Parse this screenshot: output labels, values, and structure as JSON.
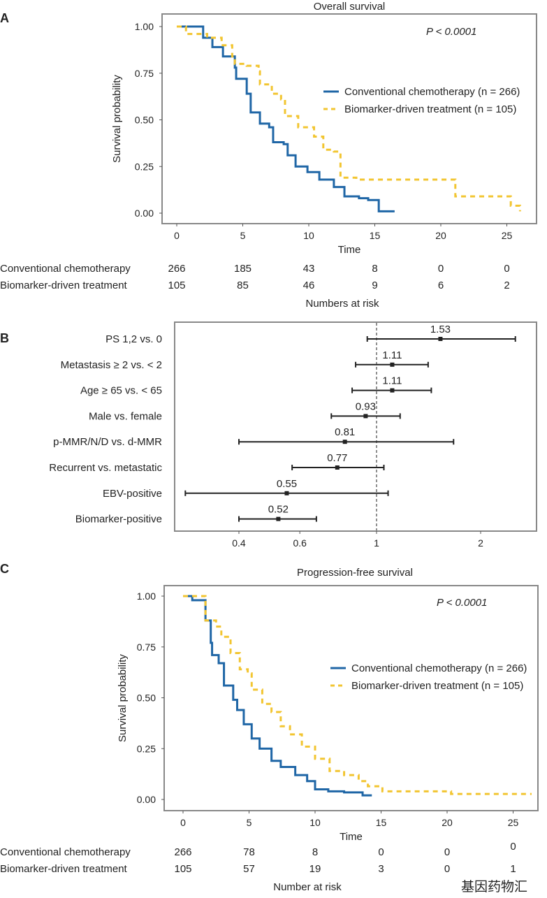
{
  "colors": {
    "conventional": "#1f66a6",
    "biomarker": "#f2c531",
    "frame": "#888888"
  },
  "chart_data": [
    {
      "panel": "A",
      "type": "line",
      "title": "Overall survival",
      "xlabel": "Time",
      "ylabel": "Survival probability",
      "xlim": [
        0,
        26.5
      ],
      "ylim": [
        0,
        1
      ],
      "xticks": [
        "0",
        "5",
        "10",
        "15",
        "20",
        "25"
      ],
      "yticks": [
        "0.00",
        "0.25",
        "0.50",
        "0.75",
        "1.00"
      ],
      "annotation": "P < 0.0001",
      "legend_position": "right",
      "series": [
        {
          "name": "Conventional chemotherapy (n = 266)",
          "style": "solid",
          "x": [
            0,
            0.5,
            2,
            2.7,
            3.5,
            4.4,
            4.5,
            5.3,
            5.6,
            6.3,
            7,
            7.3,
            8.1,
            8.4,
            9,
            9.9,
            10.8,
            11.9,
            12.7,
            13.8,
            14.5,
            15.3,
            16.5
          ],
          "y": [
            1,
            1,
            0.94,
            0.89,
            0.84,
            0.78,
            0.72,
            0.64,
            0.54,
            0.48,
            0.46,
            0.38,
            0.37,
            0.31,
            0.25,
            0.22,
            0.18,
            0.14,
            0.09,
            0.08,
            0.07,
            0.01,
            0.01
          ]
        },
        {
          "name": "Biomarker-driven treatment (n = 105)",
          "style": "dashed",
          "x": [
            0,
            0.7,
            2.3,
            3.4,
            4.2,
            4.4,
            5.3,
            6.2,
            6.3,
            7.2,
            7.9,
            8.2,
            9.2,
            10.4,
            11.1,
            11.9,
            12.4,
            13.6,
            21.1,
            25.3,
            26
          ],
          "y": [
            1,
            0.96,
            0.94,
            0.9,
            0.84,
            0.8,
            0.79,
            0.76,
            0.69,
            0.64,
            0.61,
            0.52,
            0.46,
            0.41,
            0.34,
            0.33,
            0.19,
            0.18,
            0.09,
            0.04,
            0.01
          ]
        }
      ],
      "risk_table": {
        "title": "Numbers at risk",
        "rows": [
          {
            "label": "Conventional chemotherapy",
            "values": [
              "266",
              "185",
              "43",
              "8",
              "0",
              "0"
            ]
          },
          {
            "label": "Biomarker-driven treatment",
            "values": [
              "105",
              "85",
              "46",
              "9",
              "6",
              "2"
            ]
          }
        ]
      }
    },
    {
      "panel": "B",
      "type": "forest",
      "x_scale": "log",
      "xlim": [
        0.25,
        2.7
      ],
      "xticks": [
        "0.4",
        "0.6",
        "1",
        "2"
      ],
      "reference_line": 1,
      "rows": [
        {
          "label": "PS 1,2 vs. 0",
          "estimate": 1.53,
          "estimate_label": "1.53",
          "lower": 0.94,
          "upper": 2.52
        },
        {
          "label": "Metastasis ≥ 2 vs. < 2",
          "estimate": 1.11,
          "estimate_label": "1.11",
          "lower": 0.87,
          "upper": 1.41
        },
        {
          "label": "Age ≥ 65 vs. < 65",
          "estimate": 1.11,
          "estimate_label": "1.11",
          "lower": 0.85,
          "upper": 1.44
        },
        {
          "label": "Male vs. female",
          "estimate": 0.93,
          "estimate_label": "0.93",
          "lower": 0.74,
          "upper": 1.17
        },
        {
          "label": "p-MMR/N/D vs. d-MMR",
          "estimate": 0.81,
          "estimate_label": "0.81",
          "lower": 0.4,
          "upper": 1.67
        },
        {
          "label": "Recurrent vs. metastatic",
          "estimate": 0.77,
          "estimate_label": "0.77",
          "lower": 0.57,
          "upper": 1.05
        },
        {
          "label": "EBV-positive",
          "estimate": 0.55,
          "estimate_label": "0.55",
          "lower": 0.28,
          "upper": 1.08
        },
        {
          "label": "Biomarker-positive",
          "estimate": 0.52,
          "estimate_label": "0.52",
          "lower": 0.4,
          "upper": 0.67
        }
      ]
    },
    {
      "panel": "C",
      "type": "line",
      "title": "Progression-free survival",
      "xlabel": "Time",
      "ylabel": "Survival probability",
      "xlim": [
        0,
        26.5
      ],
      "ylim": [
        0,
        1
      ],
      "xticks": [
        "0",
        "5",
        "10",
        "15",
        "20",
        "25"
      ],
      "yticks": [
        "0.00",
        "0.25",
        "0.50",
        "0.75",
        "1.00"
      ],
      "annotation": "P < 0.0001",
      "legend_position": "right",
      "series": [
        {
          "name": "Conventional chemotherapy (n = 266)",
          "style": "solid",
          "x": [
            0,
            0.7,
            1.7,
            2.1,
            2.2,
            2.7,
            3.1,
            3.8,
            4.1,
            4.6,
            5.2,
            5.8,
            6.7,
            7.4,
            8.5,
            9.4,
            10,
            11,
            12.2,
            13.6,
            14.3
          ],
          "y": [
            1,
            0.98,
            0.88,
            0.77,
            0.71,
            0.67,
            0.56,
            0.49,
            0.44,
            0.37,
            0.3,
            0.25,
            0.19,
            0.16,
            0.12,
            0.09,
            0.05,
            0.04,
            0.035,
            0.02,
            0.02
          ]
        },
        {
          "name": "Biomarker-driven treatment (n = 105)",
          "style": "dashed",
          "x": [
            0,
            1.7,
            2.5,
            2.9,
            3.6,
            4.3,
            4.9,
            5.2,
            6,
            6.7,
            7.4,
            8.1,
            9,
            10,
            11.1,
            12.2,
            13.3,
            14,
            15.1,
            20.3,
            26.4
          ],
          "y": [
            1,
            0.88,
            0.85,
            0.8,
            0.72,
            0.64,
            0.62,
            0.54,
            0.47,
            0.43,
            0.36,
            0.32,
            0.26,
            0.2,
            0.14,
            0.12,
            0.09,
            0.065,
            0.04,
            0.027,
            0.027
          ]
        }
      ],
      "risk_table": {
        "title": "Number at risk",
        "rows": [
          {
            "label": "Conventional chemotherapy",
            "values": [
              "266",
              "78",
              "8",
              "0",
              "0",
              "0"
            ]
          },
          {
            "label": "Biomarker-driven treatment",
            "values": [
              "105",
              "57",
              "19",
              "3",
              "0",
              "1"
            ]
          }
        ]
      }
    }
  ],
  "watermark": "基因药物汇"
}
